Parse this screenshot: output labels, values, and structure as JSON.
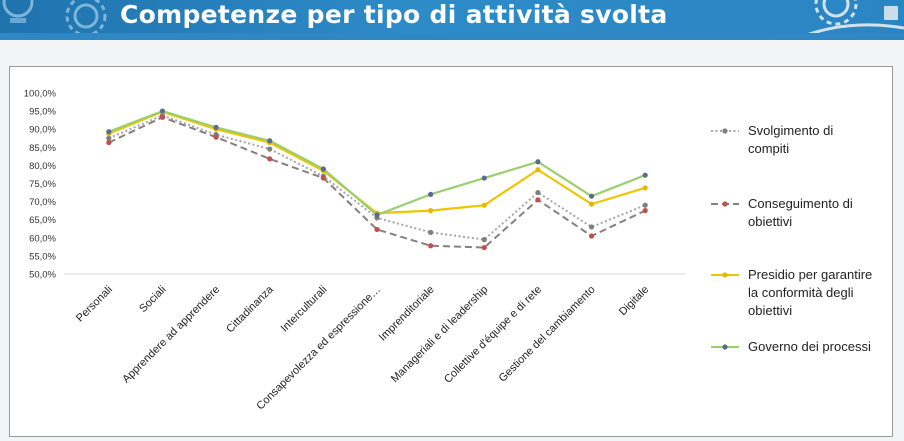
{
  "header": {
    "title": "Competenze per tipo di attività svolta"
  },
  "chart_data": {
    "type": "line",
    "categories": [
      "Personali",
      "Sociali",
      "Apprendere ad apprendere",
      "Cittadinanza",
      "Interculturali",
      "Consapevolezza ed espressione…",
      "Imprenditoriale",
      "Manageriali e di leadership",
      "Collettive d'équipe e di rete",
      "Gestione del cambiamento",
      "Digitale"
    ],
    "y_ticks": [
      "100,0%",
      "95,0%",
      "90,0%",
      "85,0%",
      "80,0%",
      "75,0%",
      "70,0%",
      "65,0%",
      "60,0%",
      "55,0%",
      "50,0%"
    ],
    "ylim": [
      50,
      100
    ],
    "grid": false,
    "legend_position": "right",
    "series": [
      {
        "name": "Svolgimento di compiti",
        "name_lines": [
          "Svolgimento di",
          "compiti"
        ],
        "color": "#a6a6a6",
        "marker": "#7f7f7f",
        "style": "dotted",
        "values": [
          87.5,
          93.8,
          88.5,
          84.5,
          77.0,
          65.5,
          61.5,
          59.5,
          72.5,
          63.0,
          69.0
        ]
      },
      {
        "name": "Conseguimento di obiettivi",
        "name_lines": [
          "Conseguimento di",
          "obiettivi"
        ],
        "color": "#8a7f7f",
        "marker": "#c0504d",
        "style": "dashed",
        "values": [
          86.3,
          93.3,
          87.8,
          81.8,
          76.5,
          62.3,
          57.8,
          57.3,
          70.5,
          60.5,
          67.5
        ]
      },
      {
        "name": "Presidio per garantire la conformità degli obiettivi",
        "name_lines": [
          "Presidio per garantire",
          "la conformità degli",
          "obiettivi"
        ],
        "color": "#f0c400",
        "marker": "#e6b800",
        "style": "solid",
        "values": [
          88.8,
          94.8,
          90.0,
          86.3,
          78.5,
          66.8,
          67.5,
          69.0,
          78.8,
          69.3,
          73.8
        ]
      },
      {
        "name": "Governo dei processi",
        "name_lines": [
          "Governo dei processi"
        ],
        "color": "#9bcf6e",
        "marker": "#5a6b8c",
        "style": "solid",
        "values": [
          89.3,
          95.0,
          90.5,
          86.8,
          79.0,
          66.3,
          72.0,
          76.5,
          81.0,
          71.5,
          77.3
        ]
      }
    ]
  }
}
